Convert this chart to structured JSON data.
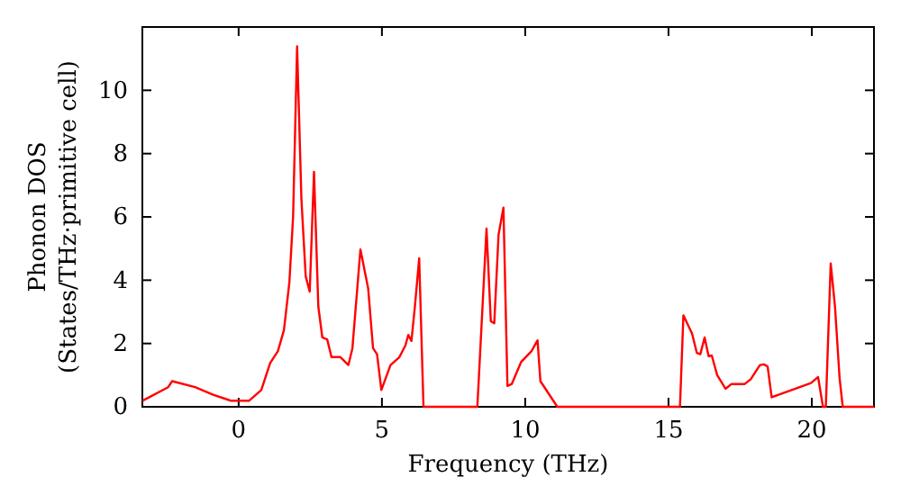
{
  "chart_data": {
    "type": "line",
    "xlabel": "Frequency (THz)",
    "ylabel": "Phonon DOS\n(States/THz·primitive cell)",
    "xlim": [
      -3.36,
      22.17
    ],
    "ylim": [
      0,
      12
    ],
    "xticks": [
      0,
      5,
      10,
      15,
      20
    ],
    "yticks": [
      0,
      2,
      4,
      6,
      8,
      10
    ],
    "grid": false,
    "marker": "none",
    "line_style": "solid",
    "series": [
      {
        "color": "#ff0000",
        "x": [
          -3.36,
          -2.46,
          -2.32,
          -1.52,
          -0.89,
          -0.26,
          0.36,
          0.79,
          1.1,
          1.37,
          1.58,
          1.77,
          1.9,
          2.04,
          2.19,
          2.34,
          2.48,
          2.63,
          2.78,
          2.92,
          3.09,
          3.24,
          3.55,
          3.83,
          3.97,
          4.25,
          4.52,
          4.69,
          4.83,
          4.98,
          5.3,
          5.61,
          5.82,
          5.92,
          6.03,
          6.15,
          6.3,
          6.45,
          8.33,
          8.65,
          8.8,
          8.92,
          9.07,
          9.24,
          9.38,
          9.53,
          9.86,
          10.22,
          10.43,
          10.53,
          11.12,
          15.4,
          15.52,
          15.82,
          15.99,
          16.11,
          16.26,
          16.4,
          16.51,
          16.7,
          16.99,
          17.2,
          17.66,
          17.87,
          18.19,
          18.33,
          18.46,
          18.6,
          19.97,
          20.22,
          20.39,
          20.49,
          20.66,
          20.81,
          20.97,
          21.08,
          22.17
        ],
        "values": [
          0.19,
          0.62,
          0.81,
          0.62,
          0.38,
          0.19,
          0.19,
          0.53,
          1.38,
          1.76,
          2.42,
          3.93,
          6.0,
          11.39,
          6.57,
          4.12,
          3.64,
          7.42,
          3.17,
          2.19,
          2.13,
          1.57,
          1.57,
          1.32,
          1.85,
          4.97,
          3.74,
          1.85,
          1.66,
          0.53,
          1.32,
          1.57,
          1.94,
          2.27,
          2.08,
          3.17,
          4.69,
          0,
          0,
          5.63,
          2.7,
          2.64,
          5.44,
          6.29,
          0.66,
          0.72,
          1.42,
          1.76,
          2.1,
          0.81,
          0,
          0,
          2.89,
          2.32,
          1.7,
          1.66,
          2.19,
          1.6,
          1.62,
          1.0,
          0.57,
          0.72,
          0.72,
          0.87,
          1.32,
          1.34,
          1.27,
          0.3,
          0.75,
          0.94,
          0,
          0,
          4.53,
          3.17,
          0.91,
          0,
          0
        ]
      }
    ]
  }
}
